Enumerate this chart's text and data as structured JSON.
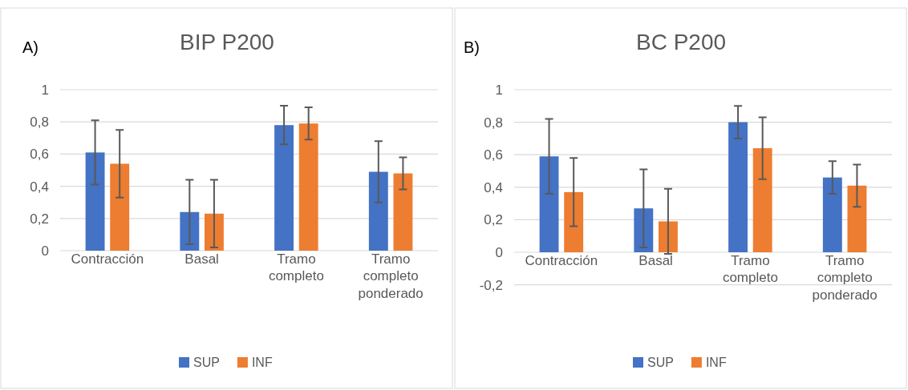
{
  "chart_data": [
    {
      "type": "bar",
      "title": "BIP P200",
      "annotations": [
        "A)"
      ],
      "categories": [
        "Contracción",
        "Basal",
        "Tramo completo",
        "Tramo completo ponderado"
      ],
      "series": [
        {
          "name": "SUP",
          "color": "#4472c4",
          "values": [
            0.61,
            0.24,
            0.78,
            0.49
          ],
          "errors": [
            0.2,
            0.2,
            0.12,
            0.19
          ]
        },
        {
          "name": "INF",
          "color": "#ed7d31",
          "values": [
            0.54,
            0.23,
            0.79,
            0.48
          ],
          "errors": [
            0.21,
            0.21,
            0.1,
            0.1
          ]
        }
      ],
      "ylim": [
        0,
        1
      ],
      "yticks": [
        {
          "value": 0,
          "label": "0"
        },
        {
          "value": 0.2,
          "label": "0,2"
        },
        {
          "value": 0.4,
          "label": "0,4"
        },
        {
          "value": 0.6,
          "label": "0,6"
        },
        {
          "value": 0.8,
          "label": "0,8"
        },
        {
          "value": 1,
          "label": "1"
        }
      ],
      "grid": "y",
      "legend": "bottom"
    },
    {
      "type": "bar",
      "title": "BC P200",
      "annotations": [
        "B)"
      ],
      "categories": [
        "Contracción",
        "Basal",
        "Tramo completo",
        "Tramo completo ponderado"
      ],
      "series": [
        {
          "name": "SUP",
          "color": "#4472c4",
          "values": [
            0.59,
            0.27,
            0.8,
            0.46
          ],
          "errors": [
            0.23,
            0.24,
            0.1,
            0.1
          ]
        },
        {
          "name": "INF",
          "color": "#ed7d31",
          "values": [
            0.37,
            0.19,
            0.64,
            0.41
          ],
          "errors": [
            0.21,
            0.2,
            0.19,
            0.13
          ]
        }
      ],
      "ylim": [
        -0.2,
        1
      ],
      "yticks": [
        {
          "value": -0.2,
          "label": "-0,2"
        },
        {
          "value": 0,
          "label": "0"
        },
        {
          "value": 0.2,
          "label": "0,2"
        },
        {
          "value": 0.4,
          "label": "0,4"
        },
        {
          "value": 0.6,
          "label": "0,6"
        },
        {
          "value": 0.8,
          "label": "0,8"
        },
        {
          "value": 1,
          "label": "1"
        }
      ],
      "grid": "y",
      "legend": "bottom"
    }
  ]
}
